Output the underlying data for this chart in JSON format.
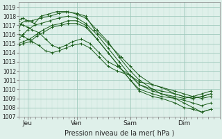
{
  "xlabel": "Pression niveau de la mer( hPa )",
  "ylim": [
    1007,
    1019.5
  ],
  "xlim": [
    0,
    4.5
  ],
  "yticks": [
    1007,
    1008,
    1009,
    1010,
    1011,
    1012,
    1013,
    1014,
    1015,
    1016,
    1017,
    1018,
    1019
  ],
  "day_labels": [
    "Jeu",
    "Ven",
    "Sam",
    "Dim"
  ],
  "day_positions": [
    0.2,
    1.3,
    2.5,
    3.7
  ],
  "bg_color": "#dff0ea",
  "grid_color_minor": "#c0ddd5",
  "grid_color_major": "#9fc9bc",
  "line_color": "#1a5c1a",
  "series": [
    [
      0.0,
      1017.5,
      0.05,
      1017.7,
      0.1,
      1017.8,
      0.2,
      1017.5,
      0.35,
      1017.2,
      0.5,
      1018.0,
      0.65,
      1018.2,
      0.85,
      1018.5,
      1.05,
      1018.5,
      1.3,
      1018.3,
      1.5,
      1018.0,
      1.7,
      1016.5,
      2.0,
      1015.0,
      2.3,
      1013.5,
      2.5,
      1012.5,
      2.7,
      1011.5,
      3.0,
      1010.5,
      3.2,
      1010.2,
      3.5,
      1009.5,
      3.7,
      1009.2,
      3.9,
      1009.0,
      4.1,
      1009.2,
      4.3,
      1009.5
    ],
    [
      0.0,
      1016.5,
      0.05,
      1017.2,
      0.15,
      1017.5,
      0.3,
      1017.5,
      0.5,
      1017.8,
      0.7,
      1018.0,
      0.9,
      1018.3,
      1.1,
      1018.5,
      1.3,
      1018.2,
      1.5,
      1017.8,
      1.75,
      1016.5,
      2.0,
      1015.2,
      2.25,
      1013.5,
      2.5,
      1012.0,
      2.7,
      1011.0,
      3.0,
      1010.0,
      3.2,
      1009.5,
      3.5,
      1009.0,
      3.7,
      1008.5,
      3.9,
      1008.0,
      4.1,
      1007.5,
      4.3,
      1007.8
    ],
    [
      0.0,
      1015.5,
      0.1,
      1016.0,
      0.2,
      1016.5,
      0.35,
      1017.0,
      0.5,
      1017.2,
      0.7,
      1017.5,
      0.9,
      1017.8,
      1.1,
      1018.0,
      1.3,
      1017.8,
      1.5,
      1017.2,
      1.75,
      1016.0,
      2.0,
      1014.5,
      2.25,
      1013.0,
      2.5,
      1011.5,
      2.7,
      1010.5,
      3.0,
      1009.8,
      3.2,
      1009.5,
      3.5,
      1009.2,
      3.7,
      1009.0,
      3.9,
      1009.2,
      4.1,
      1009.5,
      4.3,
      1009.8
    ],
    [
      0.0,
      1015.0,
      0.1,
      1015.2,
      0.25,
      1015.5,
      0.4,
      1016.0,
      0.55,
      1016.5,
      0.75,
      1017.0,
      0.95,
      1017.2,
      1.1,
      1017.5,
      1.3,
      1017.5,
      1.5,
      1017.0,
      1.75,
      1015.5,
      2.0,
      1014.0,
      2.25,
      1012.5,
      2.5,
      1011.0,
      2.7,
      1010.0,
      3.0,
      1009.5,
      3.2,
      1009.2,
      3.5,
      1009.0,
      3.7,
      1008.8,
      3.9,
      1008.5,
      4.1,
      1008.2,
      4.3,
      1008.5
    ],
    [
      0.0,
      1014.8,
      0.1,
      1015.0,
      0.25,
      1015.2,
      0.4,
      1015.8,
      0.55,
      1016.2,
      0.75,
      1016.8,
      0.95,
      1017.0,
      1.1,
      1017.2,
      1.3,
      1017.2,
      1.5,
      1016.8,
      1.75,
      1015.5,
      2.0,
      1014.0,
      2.25,
      1012.5,
      2.5,
      1011.0,
      2.7,
      1009.8,
      3.0,
      1009.2,
      3.2,
      1009.0,
      3.5,
      1008.5,
      3.7,
      1008.0,
      3.9,
      1007.8,
      4.1,
      1007.5,
      4.3,
      1007.8
    ],
    [
      0.0,
      1017.2,
      0.1,
      1017.0,
      0.2,
      1016.8,
      0.3,
      1016.5,
      0.45,
      1016.2,
      0.6,
      1015.5,
      0.75,
      1014.8,
      0.9,
      1014.5,
      1.05,
      1014.8,
      1.2,
      1015.2,
      1.4,
      1015.5,
      1.6,
      1015.0,
      1.8,
      1014.0,
      2.0,
      1013.0,
      2.2,
      1012.5,
      2.5,
      1011.5,
      2.7,
      1010.5,
      3.0,
      1010.0,
      3.2,
      1009.8,
      3.5,
      1009.5,
      3.7,
      1009.2,
      3.9,
      1009.0,
      4.1,
      1009.2,
      4.3,
      1009.5
    ],
    [
      0.0,
      1016.0,
      0.1,
      1015.8,
      0.2,
      1015.5,
      0.3,
      1015.2,
      0.45,
      1014.8,
      0.6,
      1014.2,
      0.75,
      1014.0,
      0.9,
      1014.2,
      1.05,
      1014.5,
      1.2,
      1014.8,
      1.4,
      1015.0,
      1.6,
      1014.5,
      1.8,
      1013.5,
      2.0,
      1012.5,
      2.2,
      1012.0,
      2.5,
      1011.5,
      2.7,
      1010.8,
      3.0,
      1010.5,
      3.2,
      1010.2,
      3.5,
      1009.8,
      3.7,
      1009.5,
      3.9,
      1009.2,
      4.1,
      1009.0,
      4.3,
      1009.2
    ]
  ]
}
